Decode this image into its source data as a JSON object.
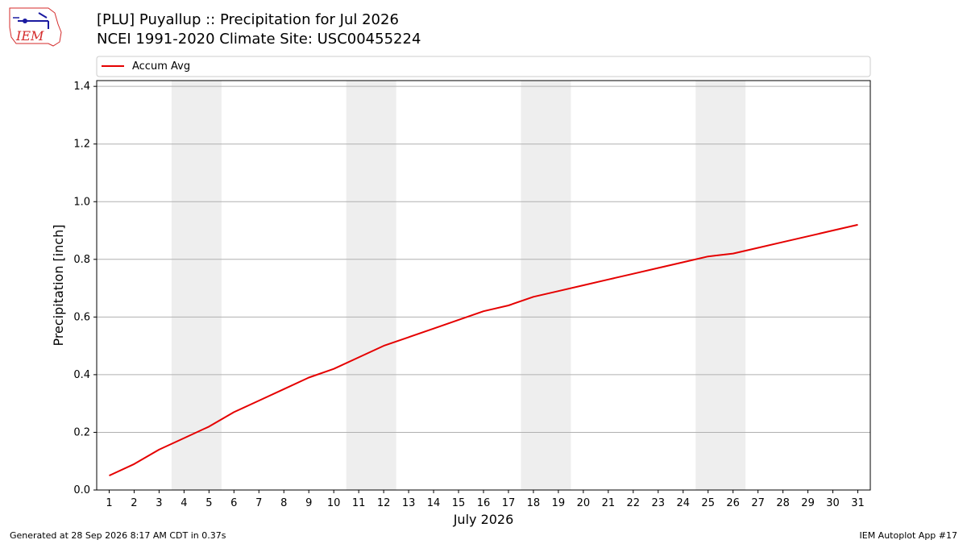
{
  "header": {
    "title_line1": "[PLU] Puyallup :: Precipitation for Jul 2026",
    "title_line2": "NCEI 1991-2020 Climate Site: USC00455224"
  },
  "logo": {
    "text": "IEM"
  },
  "footer": {
    "left": "Generated at 28 Sep 2026 8:17 AM CDT in 0.37s",
    "right": "IEM Autoplot App #17"
  },
  "colors": {
    "series": "#e50000",
    "weekend": "#eeeeee",
    "grid": "#b0b0b0"
  },
  "chart_data": {
    "type": "line",
    "title": "[PLU] Puyallup :: Precipitation for Jul 2026",
    "subtitle": "NCEI 1991-2020 Climate Site: USC00455224",
    "xlabel": "July 2026",
    "ylabel": "Precipitation [inch]",
    "x": [
      1,
      2,
      3,
      4,
      5,
      6,
      7,
      8,
      9,
      10,
      11,
      12,
      13,
      14,
      15,
      16,
      17,
      18,
      19,
      20,
      21,
      22,
      23,
      24,
      25,
      26,
      27,
      28,
      29,
      30,
      31
    ],
    "xlim": [
      0.5,
      31.5
    ],
    "ylim": [
      0,
      1.42
    ],
    "yticks": [
      0.0,
      0.2,
      0.4,
      0.6,
      0.8,
      1.0,
      1.2,
      1.4
    ],
    "ytick_labels": [
      "0.0",
      "0.2",
      "0.4",
      "0.6",
      "0.8",
      "1.0",
      "1.2",
      "1.4"
    ],
    "xtick_labels": [
      "1",
      "2",
      "3",
      "4",
      "5",
      "6",
      "7",
      "8",
      "9",
      "10",
      "11",
      "12",
      "13",
      "14",
      "15",
      "16",
      "17",
      "18",
      "19",
      "20",
      "21",
      "22",
      "23",
      "24",
      "25",
      "26",
      "27",
      "28",
      "29",
      "30",
      "31"
    ],
    "grid": "horizontal",
    "legend_position": "top",
    "shaded_days": [
      [
        4,
        5
      ],
      [
        11,
        12
      ],
      [
        18,
        19
      ],
      [
        25,
        26
      ]
    ],
    "series": [
      {
        "name": "Accum Avg",
        "values": [
          0.05,
          0.09,
          0.14,
          0.18,
          0.22,
          0.27,
          0.31,
          0.35,
          0.39,
          0.42,
          0.46,
          0.5,
          0.53,
          0.56,
          0.59,
          0.62,
          0.64,
          0.67,
          0.69,
          0.71,
          0.73,
          0.75,
          0.77,
          0.79,
          0.81,
          0.82,
          0.84,
          0.86,
          0.88,
          0.9,
          0.92
        ]
      }
    ]
  }
}
